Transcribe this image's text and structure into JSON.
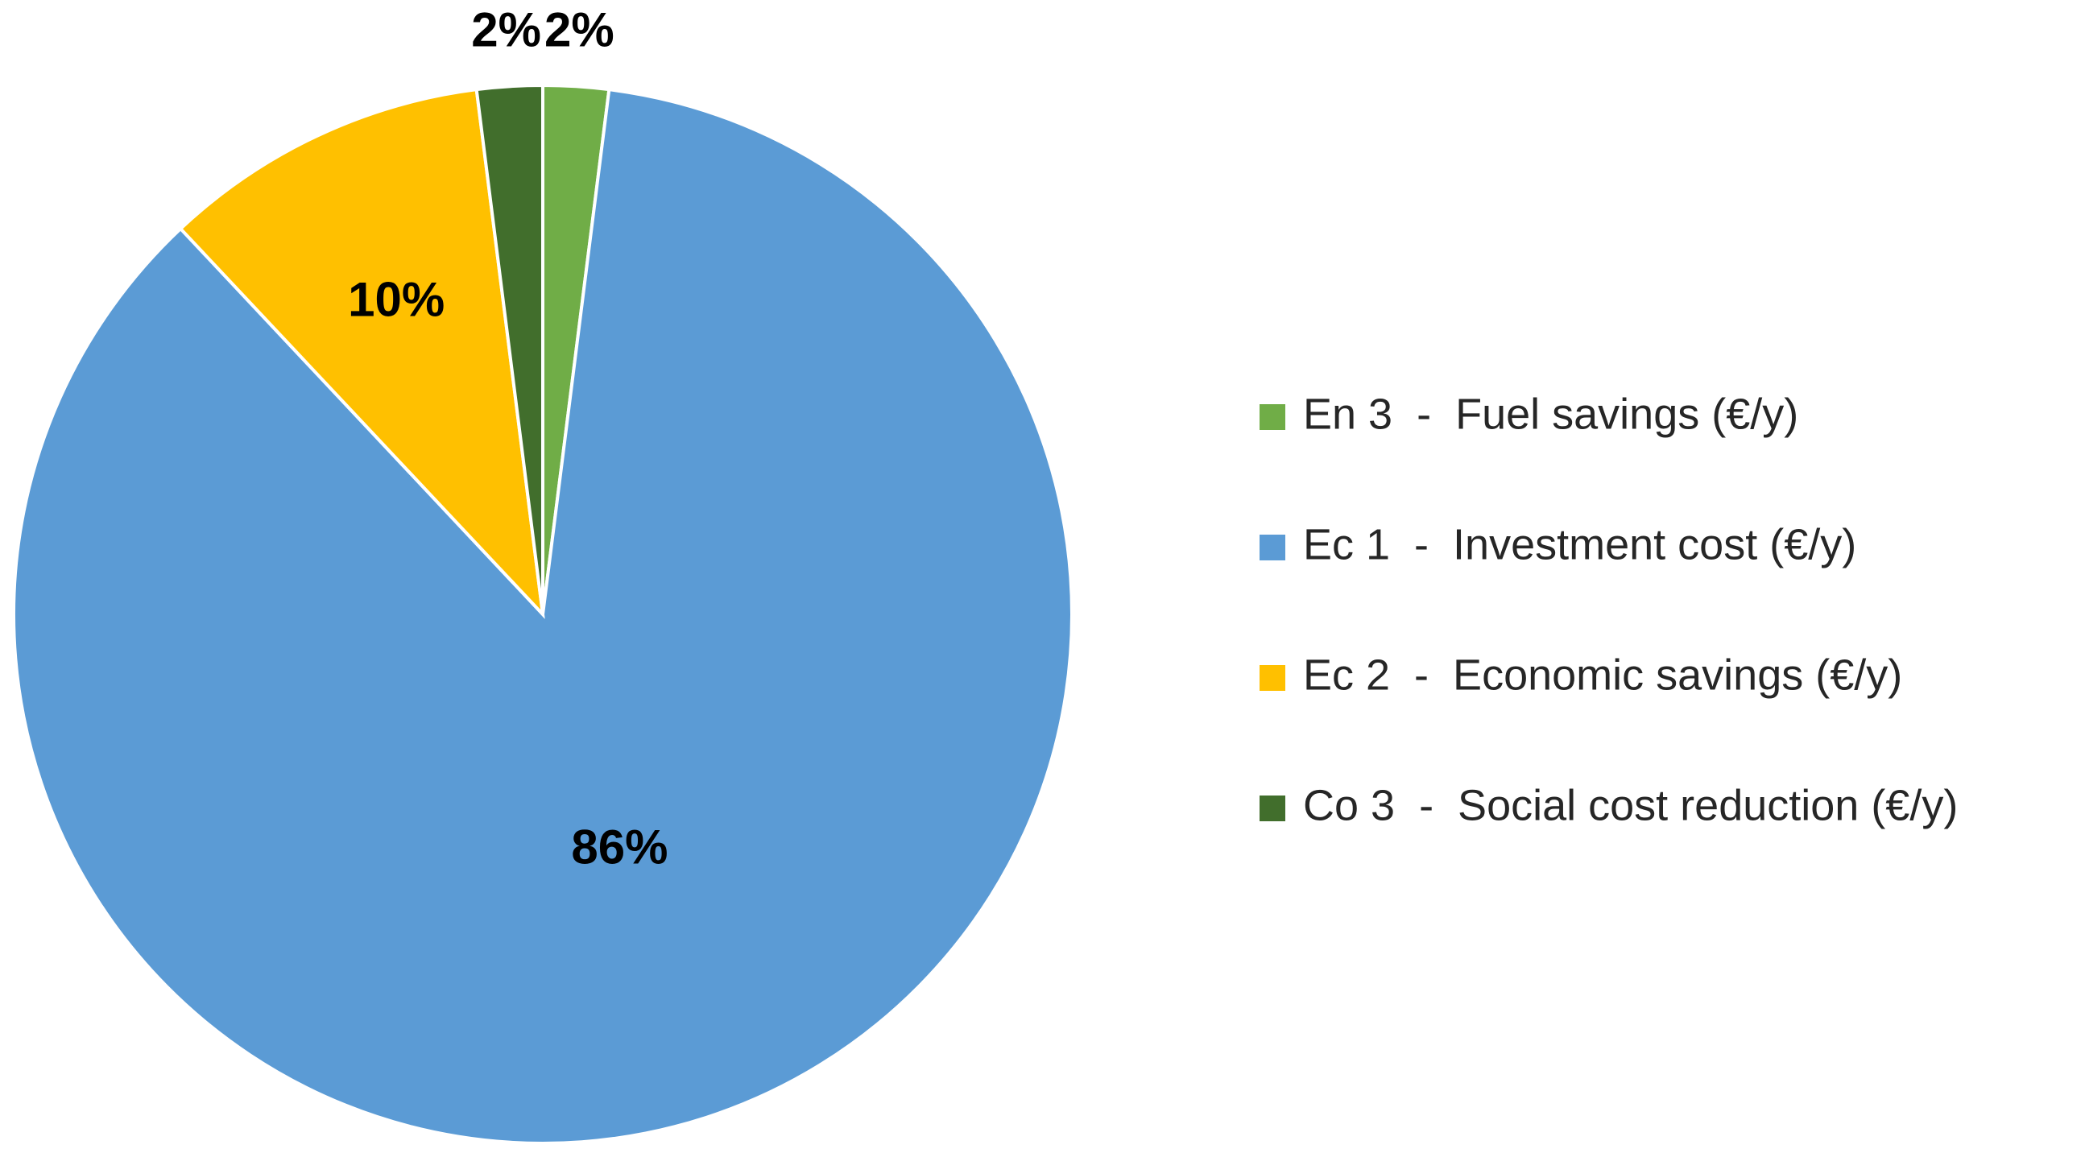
{
  "chart_data": {
    "type": "pie",
    "categories": [
      "En 3  -  Fuel savings (€/y)",
      "Ec 1  -  Investment cost (€/y)",
      "Ec 2  -  Economic savings (€/y)",
      "Co 3  -  Social cost reduction (€/y)"
    ],
    "values": [
      2,
      86,
      10,
      2
    ],
    "value_labels": [
      "2%",
      "86%",
      "10%",
      "2%"
    ],
    "colors": [
      "#70ad47",
      "#5b9bd5",
      "#ffc000",
      "#416e2c"
    ],
    "legend": "right"
  }
}
